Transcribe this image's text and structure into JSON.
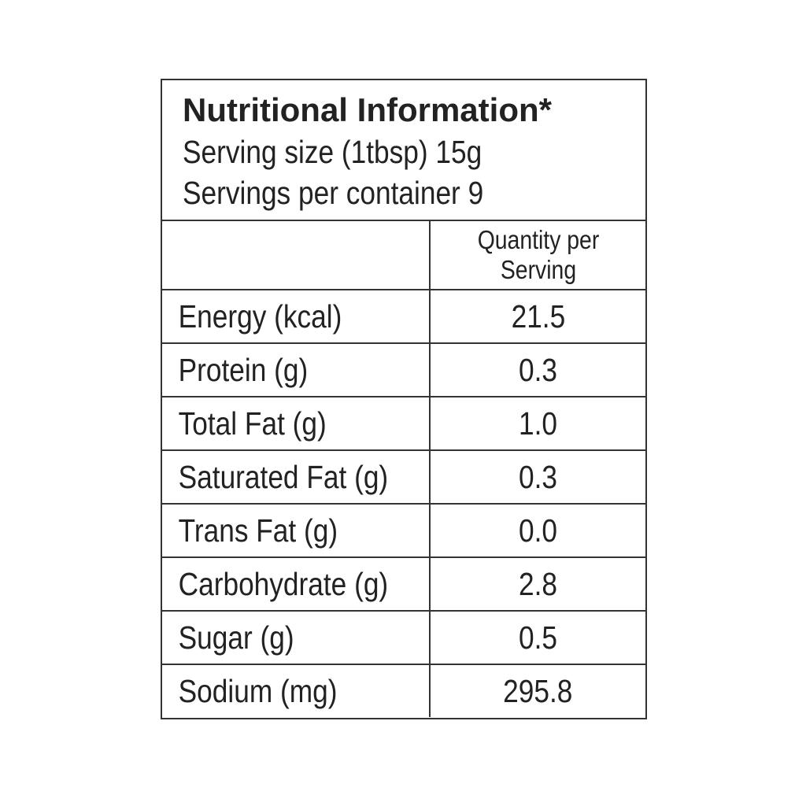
{
  "header": {
    "title": "Nutritional Information*",
    "serving_size": "Serving size (1tbsp) 15g",
    "servings_per_container": "Servings per container 9"
  },
  "table": {
    "columns": [
      "",
      "Quantity per Serving"
    ],
    "rows": [
      [
        "Energy (kcal)",
        "21.5"
      ],
      [
        "Protein (g)",
        "0.3"
      ],
      [
        "Total Fat (g)",
        "1.0"
      ],
      [
        "Saturated Fat (g)",
        "0.3"
      ],
      [
        "Trans Fat (g)",
        "0.0"
      ],
      [
        "Carbohydrate (g)",
        "2.8"
      ],
      [
        "Sugar (g)",
        "0.5"
      ],
      [
        "Sodium (mg)",
        "295.8"
      ]
    ]
  }
}
